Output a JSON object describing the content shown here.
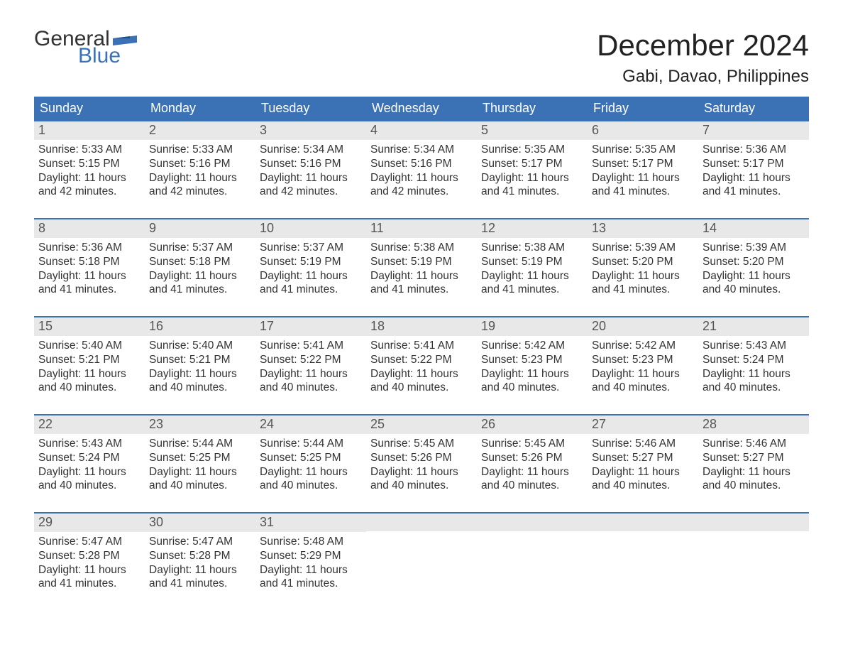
{
  "logo": {
    "word1": "General",
    "word2": "Blue",
    "accent_color": "#3a72b5"
  },
  "header": {
    "month_title": "December 2024",
    "location": "Gabi, Davao, Philippines"
  },
  "calendar": {
    "header_bg": "#3a72b5",
    "header_fg": "#ffffff",
    "daynum_bg": "#e8e8e8",
    "week_border_color": "#3a72b5",
    "dow": [
      "Sunday",
      "Monday",
      "Tuesday",
      "Wednesday",
      "Thursday",
      "Friday",
      "Saturday"
    ],
    "weeks": [
      [
        {
          "n": "1",
          "sunrise": "5:33 AM",
          "sunset": "5:15 PM",
          "daylight": "11 hours and 42 minutes."
        },
        {
          "n": "2",
          "sunrise": "5:33 AM",
          "sunset": "5:16 PM",
          "daylight": "11 hours and 42 minutes."
        },
        {
          "n": "3",
          "sunrise": "5:34 AM",
          "sunset": "5:16 PM",
          "daylight": "11 hours and 42 minutes."
        },
        {
          "n": "4",
          "sunrise": "5:34 AM",
          "sunset": "5:16 PM",
          "daylight": "11 hours and 42 minutes."
        },
        {
          "n": "5",
          "sunrise": "5:35 AM",
          "sunset": "5:17 PM",
          "daylight": "11 hours and 41 minutes."
        },
        {
          "n": "6",
          "sunrise": "5:35 AM",
          "sunset": "5:17 PM",
          "daylight": "11 hours and 41 minutes."
        },
        {
          "n": "7",
          "sunrise": "5:36 AM",
          "sunset": "5:17 PM",
          "daylight": "11 hours and 41 minutes."
        }
      ],
      [
        {
          "n": "8",
          "sunrise": "5:36 AM",
          "sunset": "5:18 PM",
          "daylight": "11 hours and 41 minutes."
        },
        {
          "n": "9",
          "sunrise": "5:37 AM",
          "sunset": "5:18 PM",
          "daylight": "11 hours and 41 minutes."
        },
        {
          "n": "10",
          "sunrise": "5:37 AM",
          "sunset": "5:19 PM",
          "daylight": "11 hours and 41 minutes."
        },
        {
          "n": "11",
          "sunrise": "5:38 AM",
          "sunset": "5:19 PM",
          "daylight": "11 hours and 41 minutes."
        },
        {
          "n": "12",
          "sunrise": "5:38 AM",
          "sunset": "5:19 PM",
          "daylight": "11 hours and 41 minutes."
        },
        {
          "n": "13",
          "sunrise": "5:39 AM",
          "sunset": "5:20 PM",
          "daylight": "11 hours and 41 minutes."
        },
        {
          "n": "14",
          "sunrise": "5:39 AM",
          "sunset": "5:20 PM",
          "daylight": "11 hours and 40 minutes."
        }
      ],
      [
        {
          "n": "15",
          "sunrise": "5:40 AM",
          "sunset": "5:21 PM",
          "daylight": "11 hours and 40 minutes."
        },
        {
          "n": "16",
          "sunrise": "5:40 AM",
          "sunset": "5:21 PM",
          "daylight": "11 hours and 40 minutes."
        },
        {
          "n": "17",
          "sunrise": "5:41 AM",
          "sunset": "5:22 PM",
          "daylight": "11 hours and 40 minutes."
        },
        {
          "n": "18",
          "sunrise": "5:41 AM",
          "sunset": "5:22 PM",
          "daylight": "11 hours and 40 minutes."
        },
        {
          "n": "19",
          "sunrise": "5:42 AM",
          "sunset": "5:23 PM",
          "daylight": "11 hours and 40 minutes."
        },
        {
          "n": "20",
          "sunrise": "5:42 AM",
          "sunset": "5:23 PM",
          "daylight": "11 hours and 40 minutes."
        },
        {
          "n": "21",
          "sunrise": "5:43 AM",
          "sunset": "5:24 PM",
          "daylight": "11 hours and 40 minutes."
        }
      ],
      [
        {
          "n": "22",
          "sunrise": "5:43 AM",
          "sunset": "5:24 PM",
          "daylight": "11 hours and 40 minutes."
        },
        {
          "n": "23",
          "sunrise": "5:44 AM",
          "sunset": "5:25 PM",
          "daylight": "11 hours and 40 minutes."
        },
        {
          "n": "24",
          "sunrise": "5:44 AM",
          "sunset": "5:25 PM",
          "daylight": "11 hours and 40 minutes."
        },
        {
          "n": "25",
          "sunrise": "5:45 AM",
          "sunset": "5:26 PM",
          "daylight": "11 hours and 40 minutes."
        },
        {
          "n": "26",
          "sunrise": "5:45 AM",
          "sunset": "5:26 PM",
          "daylight": "11 hours and 40 minutes."
        },
        {
          "n": "27",
          "sunrise": "5:46 AM",
          "sunset": "5:27 PM",
          "daylight": "11 hours and 40 minutes."
        },
        {
          "n": "28",
          "sunrise": "5:46 AM",
          "sunset": "5:27 PM",
          "daylight": "11 hours and 40 minutes."
        }
      ],
      [
        {
          "n": "29",
          "sunrise": "5:47 AM",
          "sunset": "5:28 PM",
          "daylight": "11 hours and 41 minutes."
        },
        {
          "n": "30",
          "sunrise": "5:47 AM",
          "sunset": "5:28 PM",
          "daylight": "11 hours and 41 minutes."
        },
        {
          "n": "31",
          "sunrise": "5:48 AM",
          "sunset": "5:29 PM",
          "daylight": "11 hours and 41 minutes."
        },
        null,
        null,
        null,
        null
      ]
    ],
    "labels": {
      "sunrise_prefix": "Sunrise: ",
      "sunset_prefix": "Sunset: ",
      "daylight_prefix": "Daylight: "
    }
  },
  "typography": {
    "title_fontsize": 42,
    "location_fontsize": 24,
    "dow_fontsize": 18,
    "daynum_fontsize": 18,
    "body_fontsize": 15.5
  },
  "colors": {
    "page_bg": "#ffffff",
    "text": "#333333",
    "accent": "#3a72b5"
  }
}
